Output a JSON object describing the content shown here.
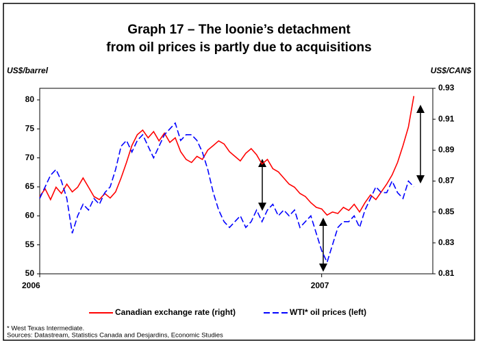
{
  "chart_data": {
    "type": "line",
    "title": [
      "Graph 17 – The loonie’s detachment",
      "from oil prices is partly due to acquisitions"
    ],
    "y_label": "US$/barrel",
    "y2_label": "US$/CAN$",
    "categories": [
      "2006",
      null,
      null,
      null,
      null,
      null,
      null,
      null,
      null,
      null,
      null,
      null,
      null,
      null,
      null,
      null,
      null,
      null,
      null,
      null,
      null,
      null,
      null,
      null,
      null,
      null,
      null,
      null,
      null,
      null,
      null,
      null,
      null,
      null,
      null,
      null,
      null,
      null,
      null,
      null,
      null,
      null,
      null,
      null,
      null,
      null,
      null,
      null,
      null,
      null,
      null,
      null,
      "2007",
      null,
      null,
      null,
      null,
      null,
      null,
      null,
      null,
      null,
      null,
      null,
      null,
      null,
      null,
      null,
      null,
      null
    ],
    "series": [
      {
        "name": "Canadian exchange rate (right)",
        "color": "#ff0000",
        "axis": "y2",
        "style": "solid",
        "values": [
          0.86,
          0.865,
          0.858,
          0.866,
          0.862,
          0.868,
          0.863,
          0.866,
          0.872,
          0.866,
          0.86,
          0.858,
          0.862,
          0.859,
          0.863,
          0.872,
          0.882,
          0.893,
          0.9,
          0.903,
          0.898,
          0.902,
          0.896,
          0.901,
          0.895,
          0.898,
          0.889,
          0.884,
          0.882,
          0.886,
          0.884,
          0.89,
          0.893,
          0.896,
          0.894,
          0.889,
          0.886,
          0.883,
          0.888,
          0.891,
          0.887,
          0.881,
          0.884,
          0.878,
          0.876,
          0.872,
          0.868,
          0.866,
          0.862,
          0.86,
          0.856,
          0.853,
          0.852,
          0.848,
          0.85,
          0.849,
          0.853,
          0.851,
          0.855,
          0.85,
          0.856,
          0.861,
          0.858,
          0.863,
          0.868,
          0.874,
          0.882,
          0.893,
          0.905,
          0.925
        ]
      },
      {
        "name": "WTI* oil prices (left)",
        "color": "#0000ff",
        "axis": "y",
        "style": "dashed",
        "values": [
          63,
          65,
          67,
          68,
          66,
          63,
          57,
          60,
          62,
          61,
          63,
          62,
          64,
          65,
          68,
          72,
          73,
          71,
          73,
          74,
          72,
          70,
          72,
          74,
          75,
          76,
          73,
          74,
          74,
          73,
          71,
          68,
          64,
          61,
          59,
          58,
          59,
          60,
          58,
          59,
          61,
          59,
          61,
          62,
          60,
          61,
          60,
          61,
          58,
          59,
          60,
          57,
          54,
          52,
          55,
          58,
          59,
          59,
          60,
          58,
          61,
          63,
          65,
          64,
          64,
          66,
          64,
          63,
          66,
          65
        ]
      }
    ],
    "ylim": [
      50,
      82
    ],
    "yticks": [
      50,
      55,
      60,
      65,
      70,
      75,
      80
    ],
    "y2lim": [
      0.81,
      0.93
    ],
    "y2ticks": [
      0.81,
      0.83,
      0.85,
      0.87,
      0.89,
      0.91,
      0.93
    ],
    "grid": false,
    "notes": [
      "* West Texas Intermediate.",
      "Sources: Datastream, Statistics Canada and Desjardins, Economic Studies"
    ]
  }
}
